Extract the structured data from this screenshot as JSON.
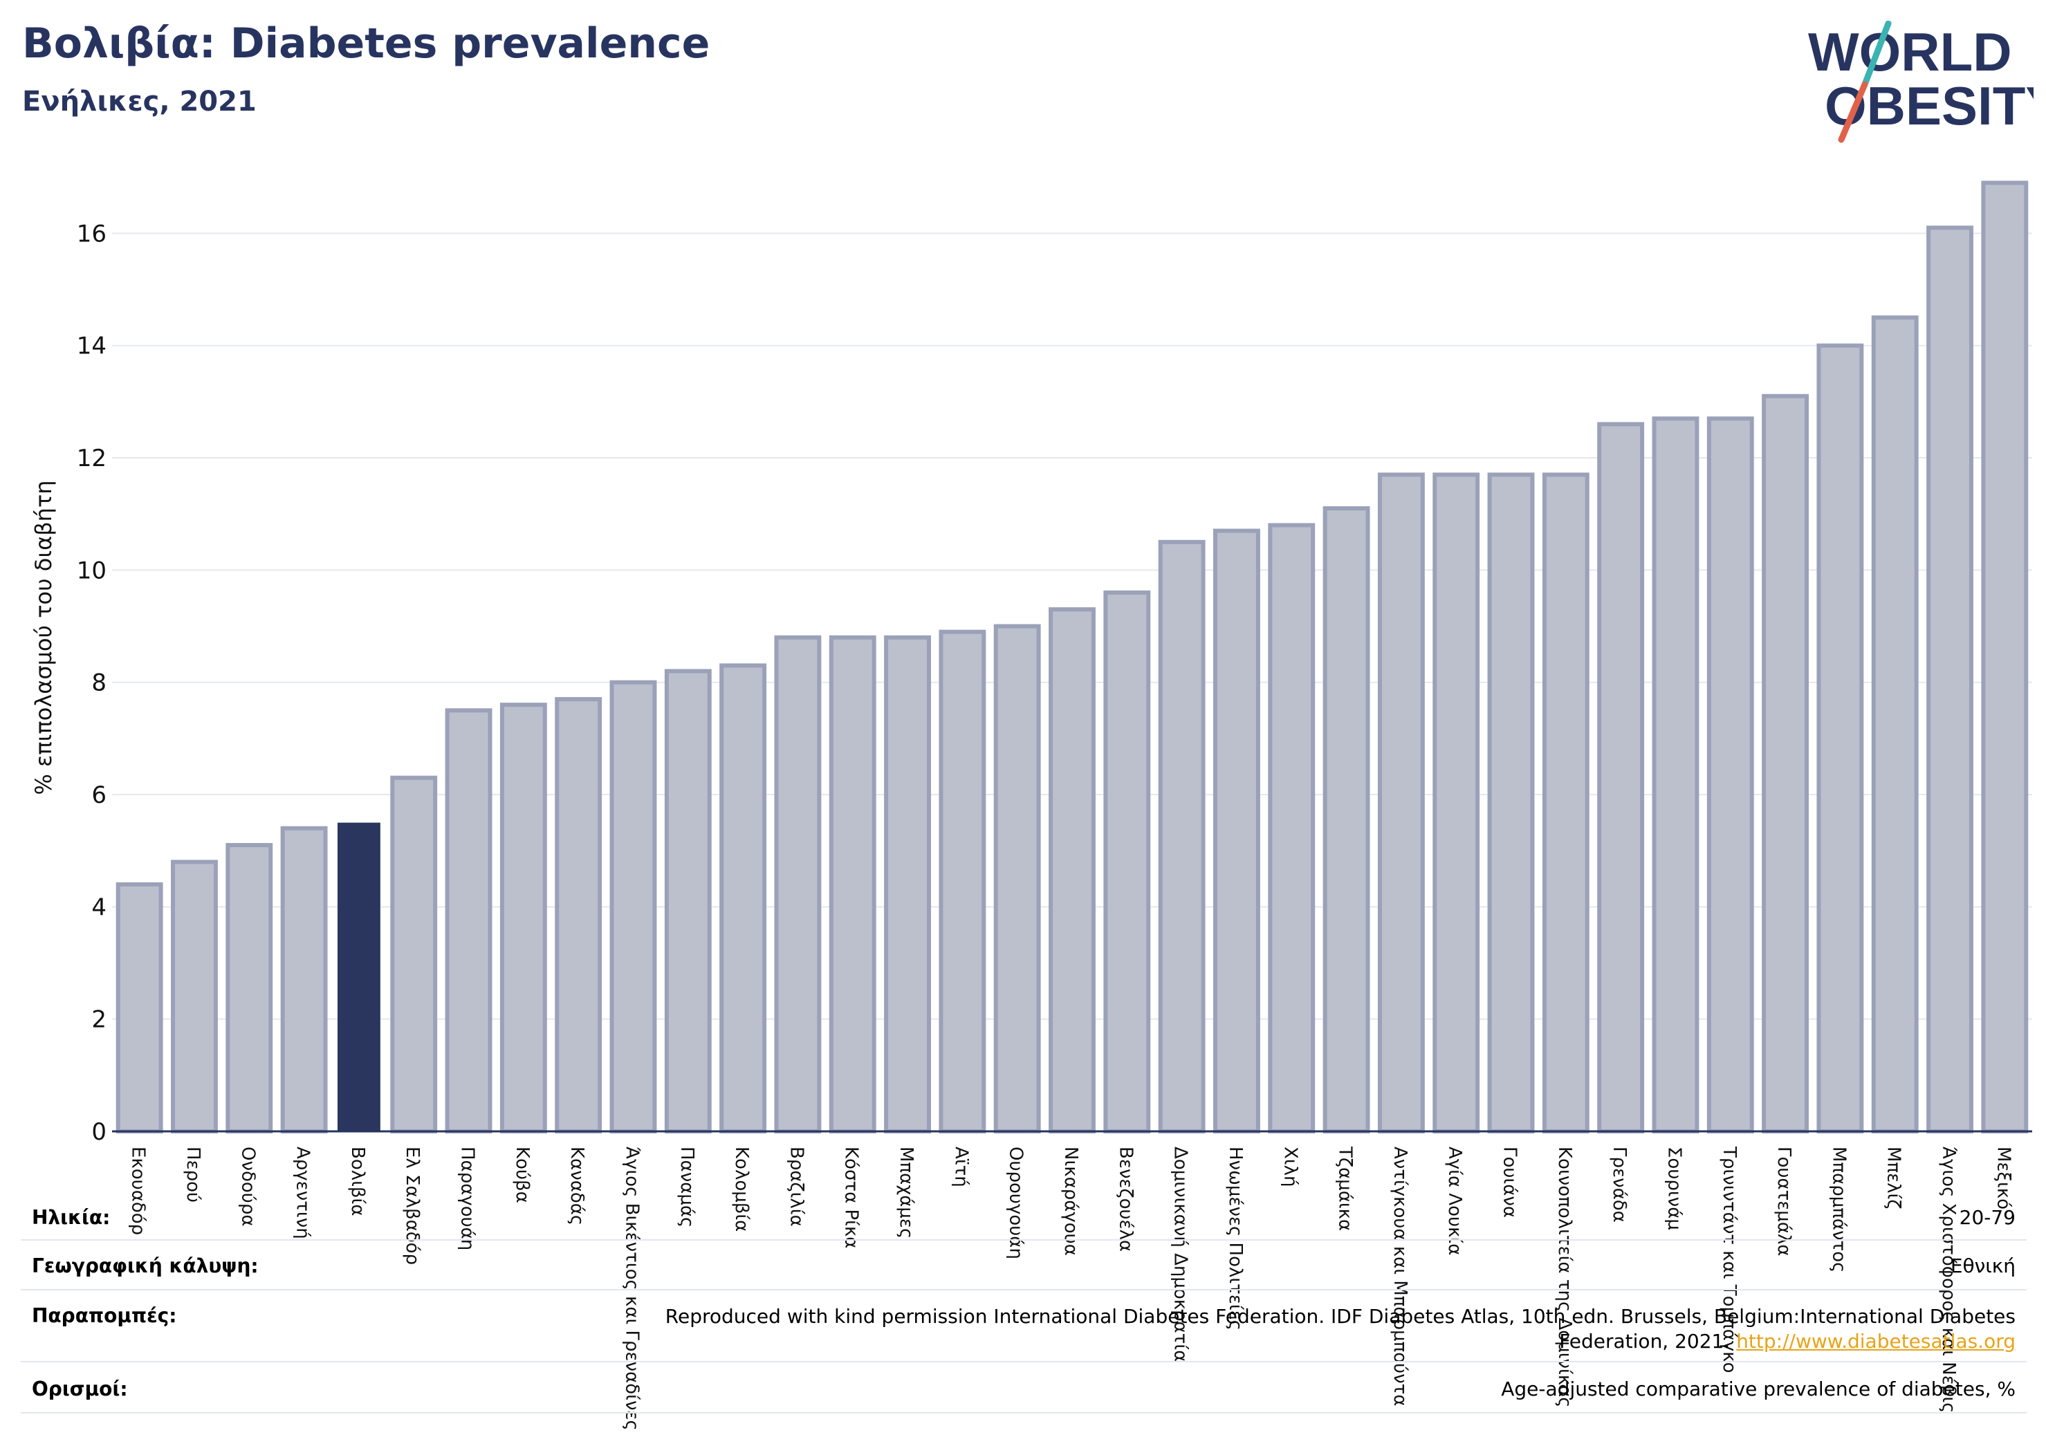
{
  "header": {
    "title": "Βολιβία: Diabetes prevalence",
    "subtitle": "Ενήλικες, 2021"
  },
  "logo": {
    "line1": "WORLD",
    "line2": "OBESITY",
    "colors": {
      "text": "#283460",
      "slash_teal": "#3bb3b3",
      "slash_red": "#e0624a"
    }
  },
  "chart_data": {
    "type": "bar",
    "title": "",
    "xlabel": "",
    "ylabel": "% επιπολασμού του διαβήτη",
    "ylim": [
      0,
      17.2
    ],
    "yticks": [
      0,
      2,
      4,
      6,
      8,
      10,
      12,
      14,
      16
    ],
    "grid": true,
    "highlight_category": "Βολιβία",
    "colors": {
      "bar": "#bcc0cd",
      "bar_edge": "#9aa1b8",
      "highlight": "#2b365f",
      "axis": "#283460",
      "grid": "#e6e8ee"
    },
    "categories": [
      "Εκουαδόρ",
      "Περού",
      "Ονδούρα",
      "Αργεντινή",
      "Βολιβία",
      "Ελ Σαλβαδόρ",
      "Παραγουάη",
      "Κούβα",
      "Καναδάς",
      "Άγιος Βικέντιος και Γρεναδίνες",
      "Παναμάς",
      "Κολομβία",
      "Βραζιλία",
      "Κόστα Ρίκα",
      "Μπαχάμες",
      "Αϊτή",
      "Ουρουγουάη",
      "Νικαράγουα",
      "Βενεζουέλα",
      "Δομινικανή Δημοκρατία",
      "Ηνωμένες Πολιτείες",
      "Χιλή",
      "Τζαμάικα",
      "Αντίγκουα και Μπαρμπούντα",
      "Αγία Λουκία",
      "Γουιάνα",
      "Κοινοπολιτεία της Δομινίκας",
      "Γρενάδα",
      "Σουρινάμ",
      "Τρινιντάντ και Τομπάγκο",
      "Γουατεμάλα",
      "Μπαρμπάντος",
      "Μπελίζ",
      "Άγιος Χριστόφορος και Νέβις",
      "Μεξικό"
    ],
    "values": [
      4.4,
      4.8,
      5.1,
      5.4,
      5.5,
      6.3,
      7.5,
      7.6,
      7.7,
      8.0,
      8.2,
      8.3,
      8.8,
      8.8,
      8.8,
      8.9,
      9.0,
      9.3,
      9.6,
      10.5,
      10.7,
      10.8,
      11.1,
      11.7,
      11.7,
      11.7,
      11.7,
      12.6,
      12.7,
      12.7,
      13.1,
      14.0,
      14.5,
      16.1,
      16.9
    ]
  },
  "meta": {
    "age": {
      "label": "Ηλικία:",
      "value": "20-79"
    },
    "coverage": {
      "label": "Γεωγραφική κάλυψη:",
      "value": "Εθνική"
    },
    "refs": {
      "label": "Παραπομπές:",
      "line1": "Reproduced with kind permission International Diabetes Federation.  IDF Diabetes Atlas, 10th edn. Brussels, Belgium:International Diabetes",
      "line2": "Federation, 2021.",
      "link": "http://www.diabetesatlas.org"
    },
    "definitions": {
      "label": "Ορισμοί:",
      "value": "Age-adjusted comparative prevalence of diabetes, %"
    }
  }
}
